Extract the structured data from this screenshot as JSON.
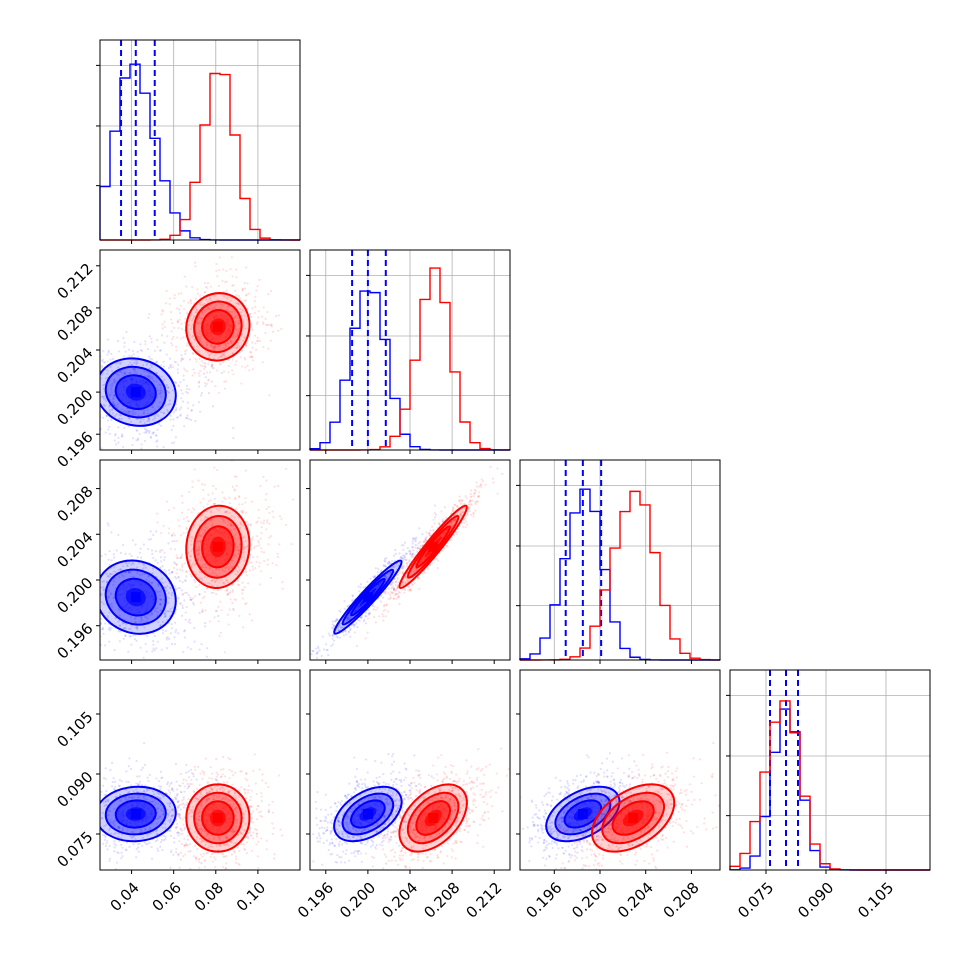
{
  "chart_data": {
    "type": "corner",
    "n_params": 4,
    "grid": true,
    "series": [
      {
        "color": "#0000ff",
        "means": [
          0.042,
          0.2,
          0.1985,
          0.08
        ],
        "sds": [
          0.0095,
          0.0016,
          0.0016,
          0.0034
        ],
        "pair_correlations": {
          "1-0": -0.1,
          "2-0": -0.1,
          "2-1": 0.96,
          "3-0": 0.05,
          "3-1": 0.45,
          "3-2": 0.45
        },
        "hist_quantile_lines": [
          [
            0.035,
            0.042,
            0.051
          ],
          [
            0.1985,
            0.2,
            0.2017
          ],
          [
            0.197,
            0.1985,
            0.2001
          ],
          [
            0.076,
            0.08,
            0.083
          ]
        ]
      },
      {
        "color": "#ff0000",
        "means": [
          0.081,
          0.2062,
          0.2029,
          0.079
        ],
        "sds": [
          0.0075,
          0.0016,
          0.0018,
          0.0042
        ],
        "pair_correlations": {
          "1-0": 0.05,
          "2-0": 0.05,
          "2-1": 0.96,
          "3-0": 0.0,
          "3-1": 0.45,
          "3-2": 0.45
        }
      }
    ],
    "panels": [
      {
        "row": 0,
        "col": 0,
        "type": "hist",
        "x_range": [
          0.025,
          0.12
        ],
        "y_max": 1.1
      },
      {
        "row": 1,
        "col": 0,
        "type": "contour",
        "x_range": [
          0.025,
          0.12
        ],
        "y_range": [
          0.1945,
          0.2135
        ]
      },
      {
        "row": 1,
        "col": 1,
        "type": "hist",
        "x_range": [
          0.1945,
          0.2135
        ],
        "y_max": 1.1
      },
      {
        "row": 2,
        "col": 0,
        "type": "contour",
        "x_range": [
          0.025,
          0.12
        ],
        "y_range": [
          0.193,
          0.2105
        ]
      },
      {
        "row": 2,
        "col": 1,
        "type": "contour",
        "x_range": [
          0.1945,
          0.2135
        ],
        "y_range": [
          0.193,
          0.2105
        ]
      },
      {
        "row": 2,
        "col": 2,
        "type": "hist",
        "x_range": [
          0.193,
          0.2105
        ],
        "y_max": 1.1
      },
      {
        "row": 3,
        "col": 0,
        "type": "contour",
        "x_range": [
          0.025,
          0.12
        ],
        "y_range": [
          0.066,
          0.116
        ]
      },
      {
        "row": 3,
        "col": 1,
        "type": "contour",
        "x_range": [
          0.1945,
          0.2135
        ],
        "y_range": [
          0.066,
          0.116
        ]
      },
      {
        "row": 3,
        "col": 2,
        "type": "contour",
        "x_range": [
          0.193,
          0.2105
        ],
        "y_range": [
          0.066,
          0.116
        ]
      },
      {
        "row": 3,
        "col": 3,
        "type": "hist",
        "x_range": [
          0.066,
          0.116
        ],
        "y_max": 1.1
      }
    ],
    "x_tick_labels": [
      {
        "col": 0,
        "values": [
          0.04,
          0.06,
          0.08,
          0.1
        ],
        "labels": [
          "0.04",
          "0.06",
          "0.08",
          "0.10"
        ]
      },
      {
        "col": 1,
        "values": [
          0.196,
          0.2,
          0.204,
          0.208,
          0.212
        ],
        "labels": [
          "0.196",
          "0.200",
          "0.204",
          "0.208",
          "0.212"
        ]
      },
      {
        "col": 2,
        "values": [
          0.196,
          0.2,
          0.204,
          0.208
        ],
        "labels": [
          "0.196",
          "0.200",
          "0.204",
          "0.208"
        ]
      },
      {
        "col": 3,
        "values": [
          0.075,
          0.09,
          0.105
        ],
        "labels": [
          "0.075",
          "0.090",
          "0.105"
        ]
      }
    ],
    "y_tick_labels": [
      {
        "row": 1,
        "values": [
          0.196,
          0.2,
          0.204,
          0.208,
          0.212
        ],
        "labels": [
          "0.196",
          "0.200",
          "0.204",
          "0.208",
          "0.212"
        ]
      },
      {
        "row": 2,
        "values": [
          0.196,
          0.2,
          0.204,
          0.208
        ],
        "labels": [
          "0.196",
          "0.200",
          "0.204",
          "0.208"
        ]
      },
      {
        "row": 3,
        "values": [
          0.075,
          0.09,
          0.105
        ],
        "labels": [
          "0.075",
          "0.090",
          "0.105"
        ]
      }
    ],
    "hist_grid_fractions": [
      0.305,
      0.64,
      0.98
    ]
  }
}
